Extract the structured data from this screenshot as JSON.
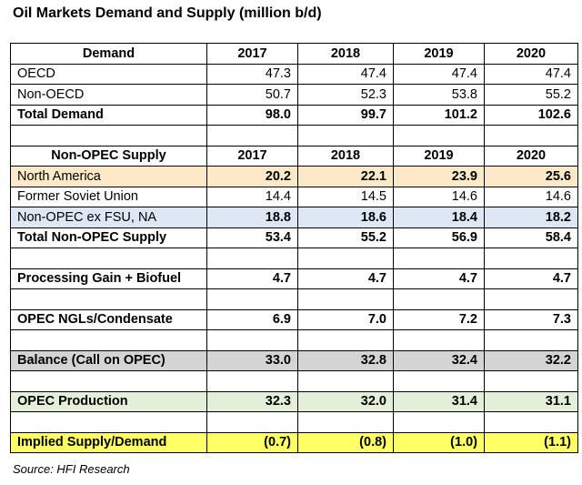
{
  "title": "Oil Markets Demand and Supply (million b/d)",
  "source": "Source: HFI Research",
  "colors": {
    "north_america": "#fce9c8",
    "non_opec_ex": "#dde8f4",
    "balance": "#d4d4d4",
    "opec_production": "#e4efd9",
    "implied": "#ffff66"
  },
  "demand": {
    "header": "Demand",
    "years": [
      "2017",
      "2018",
      "2019",
      "2020"
    ],
    "rows": [
      {
        "label": "OECD",
        "values": [
          "47.3",
          "47.4",
          "47.4",
          "47.4"
        ]
      },
      {
        "label": "Non-OECD",
        "values": [
          "50.7",
          "52.3",
          "53.8",
          "55.2"
        ]
      },
      {
        "label": "Total Demand",
        "values": [
          "98.0",
          "99.7",
          "101.2",
          "102.6"
        ]
      }
    ]
  },
  "supply": {
    "header": "Non-OPEC Supply",
    "years": [
      "2017",
      "2018",
      "2019",
      "2020"
    ],
    "rows": [
      {
        "label": "North America",
        "values": [
          "20.2",
          "22.1",
          "23.9",
          "25.6"
        ]
      },
      {
        "label": "Former Soviet Union",
        "values": [
          "14.4",
          "14.5",
          "14.6",
          "14.6"
        ]
      },
      {
        "label": "Non-OPEC ex FSU, NA",
        "values": [
          "18.8",
          "18.6",
          "18.4",
          "18.2"
        ]
      },
      {
        "label": "Total Non-OPEC Supply",
        "values": [
          "53.4",
          "55.2",
          "56.9",
          "58.4"
        ]
      }
    ]
  },
  "processing_gain": {
    "label": "Processing Gain + Biofuel",
    "values": [
      "4.7",
      "4.7",
      "4.7",
      "4.7"
    ]
  },
  "opec_ngls": {
    "label": "OPEC NGLs/Condensate",
    "values": [
      "6.9",
      "7.0",
      "7.2",
      "7.3"
    ]
  },
  "balance": {
    "label": "Balance (Call on OPEC)",
    "values": [
      "33.0",
      "32.8",
      "32.4",
      "32.2"
    ]
  },
  "opec_production": {
    "label": "OPEC Production",
    "values": [
      "32.3",
      "32.0",
      "31.4",
      "31.1"
    ]
  },
  "implied": {
    "label": "Implied Supply/Demand",
    "values": [
      "(0.7)",
      "(0.8)",
      "(1.0)",
      "(1.1)"
    ]
  }
}
